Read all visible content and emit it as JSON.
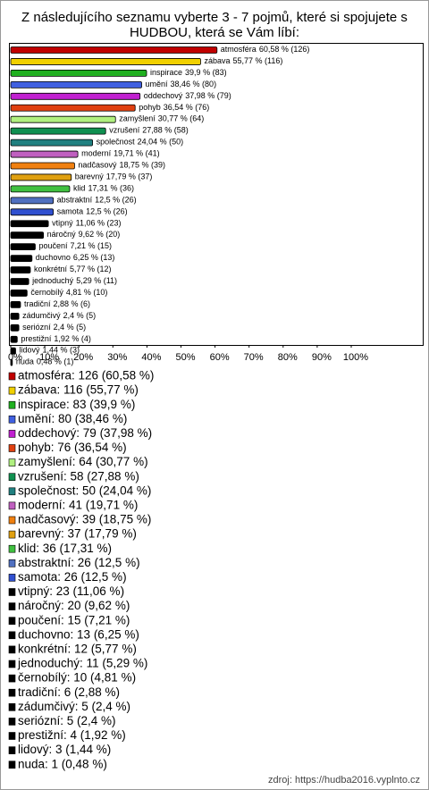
{
  "chart_data": {
    "type": "bar",
    "orientation": "horizontal",
    "title": [
      "Z následujícího seznamu vyberte 3 - 7 pojmů, které si spojujete s",
      "HUDBOU, která se Vám líbí:"
    ],
    "categories": [
      "atmosféra",
      "zábava",
      "inspirace",
      "umění",
      "oddechový",
      "pohyb",
      "zamyšlení",
      "vzrušení",
      "společnost",
      "moderní",
      "nadčasový",
      "barevný",
      "klid",
      "abstraktní",
      "samota",
      "vtipný",
      "náročný",
      "poučení",
      "duchovno",
      "konkrétní",
      "jednoduchý",
      "černobílý",
      "tradiční",
      "zádumčivý",
      "seriózní",
      "prestižní",
      "lidový",
      "nuda"
    ],
    "values": [
      60.58,
      55.77,
      39.9,
      38.46,
      37.98,
      36.54,
      30.77,
      27.88,
      24.04,
      19.71,
      18.75,
      17.79,
      17.31,
      12.5,
      12.5,
      11.06,
      9.62,
      7.21,
      6.25,
      5.77,
      5.29,
      4.81,
      2.88,
      2.4,
      2.4,
      1.92,
      1.44,
      0.48
    ],
    "value_labels": [
      "60,58 % (126)",
      "55,77 % (116)",
      "39,9 % (83)",
      "38,46 % (80)",
      "37,98 % (79)",
      "36,54 % (76)",
      "30,77 % (64)",
      "27,88 % (58)",
      "24,04 % (50)",
      "19,71 % (41)",
      "18,75 % (39)",
      "17,79 % (37)",
      "17,31 % (36)",
      "12,5 % (26)",
      "12,5 % (26)",
      "11,06 % (23)",
      "9,62 % (20)",
      "7,21 % (15)",
      "6,25 % (13)",
      "5,77 % (12)",
      "5,29 % (11)",
      "4,81 % (10)",
      "2,88 % (6)",
      "2,4 % (5)",
      "2,4 % (5)",
      "1,92 % (4)",
      "1,44 % (3)",
      "0,48 % (1)"
    ],
    "legend_labels": [
      "atmosféra: 126 (60,58 %)",
      "zábava: 116 (55,77 %)",
      "inspirace: 83 (39,9 %)",
      "umění: 80 (38,46 %)",
      "oddechový: 79 (37,98 %)",
      "pohyb: 76 (36,54 %)",
      "zamyšlení: 64 (30,77 %)",
      "vzrušení: 58 (27,88 %)",
      "společnost: 50 (24,04 %)",
      "moderní: 41 (19,71 %)",
      "nadčasový: 39 (18,75 %)",
      "barevný: 37 (17,79 %)",
      "klid: 36 (17,31 %)",
      "abstraktní: 26 (12,5 %)",
      "samota: 26 (12,5 %)",
      "vtipný: 23 (11,06 %)",
      "náročný: 20 (9,62 %)",
      "poučení: 15 (7,21 %)",
      "duchovno: 13 (6,25 %)",
      "konkrétní: 12 (5,77 %)",
      "jednoduchý: 11 (5,29 %)",
      "černobílý: 10 (4,81 %)",
      "tradiční: 6 (2,88 %)",
      "zádumčivý: 5 (2,4 %)",
      "seriózní: 5 (2,4 %)",
      "prestižní: 4 (1,92 %)",
      "lidový: 3 (1,44 %)",
      "nuda: 1 (0,48 %)"
    ],
    "colors": [
      "#c00000",
      "#f0d000",
      "#20b020",
      "#4060e0",
      "#c020d0",
      "#e04010",
      "#b0f080",
      "#109050",
      "#208080",
      "#c060c0",
      "#f08010",
      "#e0a010",
      "#40c040",
      "#5070c0",
      "#3050d0",
      "#000000",
      "#000000",
      "#000000",
      "#000000",
      "#000000",
      "#000000",
      "#000000",
      "#000000",
      "#000000",
      "#000000",
      "#000000",
      "#000000",
      "#000000"
    ],
    "xlim": [
      0,
      121
    ],
    "xticks": [
      {
        "value": 0,
        "label": "0%"
      },
      {
        "value": 10,
        "label": "10%"
      },
      {
        "value": 20,
        "label": "20%"
      },
      {
        "value": 30,
        "label": "30%"
      },
      {
        "value": 40,
        "label": "40%"
      },
      {
        "value": 50,
        "label": "50%"
      },
      {
        "value": 60,
        "label": "60%"
      },
      {
        "value": 70,
        "label": "70%"
      },
      {
        "value": 80,
        "label": "80%"
      },
      {
        "value": 90,
        "label": "90%"
      },
      {
        "value": 100,
        "label": "100%"
      }
    ],
    "source": "zdroj: https://hudba2016.vyplnto.cz"
  }
}
